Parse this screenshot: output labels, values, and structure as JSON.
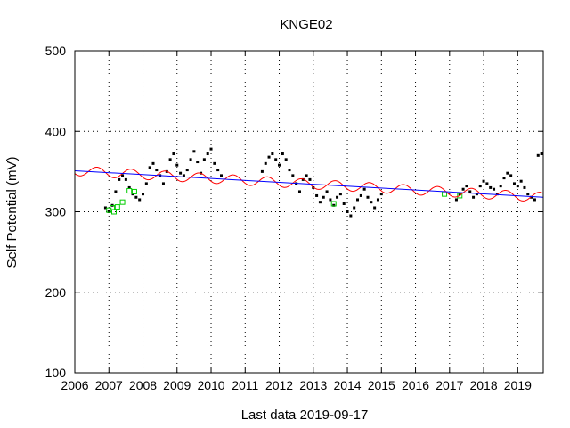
{
  "chart_data": {
    "type": "scatter",
    "title": "KNGE02",
    "ylabel": "Self Potential (mV)",
    "xlabel": "Last data 2019-09-17",
    "xlim": [
      2006.0,
      2019.75
    ],
    "ylim": [
      100,
      500
    ],
    "x_ticks": [
      2006,
      2007,
      2008,
      2009,
      2010,
      2011,
      2012,
      2013,
      2014,
      2015,
      2016,
      2017,
      2018,
      2019
    ],
    "x_tick_labels": [
      "2006",
      "2007",
      "2008",
      "2009",
      "2010",
      "2011",
      "2012",
      "2013",
      "2014",
      "2015",
      "2016",
      "2017",
      "2018",
      "2019"
    ],
    "y_ticks": [
      100,
      200,
      300,
      400,
      500
    ],
    "y_tick_labels": [
      "100",
      "200",
      "300",
      "400",
      "500"
    ],
    "grid": true,
    "colors": {
      "observed": "#000000",
      "fit": "#ff0000",
      "trend": "#0000ff",
      "secondary": "#00cc00"
    },
    "series": [
      {
        "x": [
          2006.9,
          2007.0,
          2007.1,
          2007.2,
          2007.3,
          2007.4,
          2007.5,
          2007.6,
          2007.7,
          2007.8,
          2007.9,
          2008.0,
          2008.1,
          2008.2,
          2008.3,
          2008.4,
          2008.5,
          2008.6,
          2008.7,
          2008.8,
          2008.9,
          2009.0,
          2009.1,
          2009.2,
          2009.3,
          2009.4,
          2009.5,
          2009.6,
          2009.7,
          2009.8,
          2009.9,
          2010.0,
          2010.1,
          2010.2,
          2010.3,
          2011.5,
          2011.6,
          2011.7,
          2011.8,
          2011.9,
          2012.0,
          2012.1,
          2012.2,
          2012.3,
          2012.4,
          2012.5,
          2012.6,
          2012.7,
          2012.8,
          2012.9,
          2013.0,
          2013.1,
          2013.2,
          2013.3,
          2013.4,
          2013.5,
          2013.6,
          2013.7,
          2013.8,
          2013.9,
          2014.0,
          2014.1,
          2014.2,
          2014.3,
          2014.4,
          2014.5,
          2014.6,
          2014.7,
          2014.8,
          2014.9,
          2015.0,
          2017.2,
          2017.3,
          2017.4,
          2017.5,
          2017.6,
          2017.7,
          2017.8,
          2017.9,
          2018.0,
          2018.1,
          2018.2,
          2018.3,
          2018.4,
          2018.5,
          2018.6,
          2018.7,
          2018.8,
          2018.9,
          2019.0,
          2019.1,
          2019.2,
          2019.3,
          2019.4,
          2019.5,
          2019.6,
          2019.7
        ],
        "y": [
          305,
          300,
          308,
          325,
          340,
          345,
          340,
          330,
          322,
          318,
          315,
          322,
          335,
          355,
          360,
          352,
          345,
          335,
          350,
          365,
          372,
          358,
          348,
          345,
          352,
          365,
          375,
          362,
          348,
          365,
          372,
          378,
          360,
          352,
          345,
          350,
          360,
          368,
          372,
          365,
          358,
          372,
          365,
          352,
          345,
          335,
          325,
          340,
          345,
          340,
          330,
          320,
          312,
          318,
          325,
          315,
          308,
          318,
          322,
          310,
          300,
          295,
          305,
          315,
          320,
          328,
          318,
          312,
          305,
          315,
          322,
          315,
          322,
          328,
          332,
          325,
          318,
          322,
          332,
          338,
          335,
          330,
          328,
          322,
          332,
          342,
          348,
          345,
          335,
          332,
          338,
          330,
          322,
          318,
          315,
          370,
          372
        ],
        "marker": "dot"
      },
      {
        "x": [
          2007.0,
          2007.1,
          2007.15,
          2007.25,
          2007.4,
          2007.6,
          2007.75,
          2013.6,
          2016.85,
          2017.3
        ],
        "y": [
          302,
          305,
          300,
          306,
          312,
          326,
          325,
          310,
          322,
          320
        ],
        "marker": "square"
      }
    ],
    "trend_line": {
      "x": [
        2006.0,
        2019.75
      ],
      "y": [
        351,
        318
      ]
    },
    "fit_curve": {
      "mean_start": 351,
      "mean_end": 318,
      "amplitude": 6,
      "period_years": 1.0,
      "phase_peak": 2007.65
    }
  }
}
